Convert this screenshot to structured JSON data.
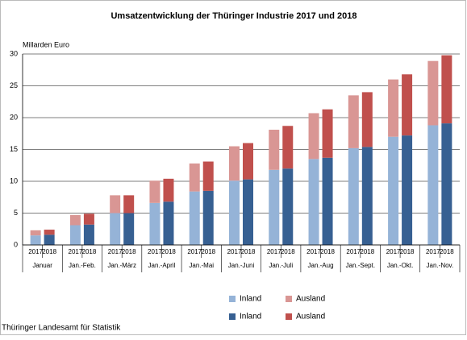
{
  "chart_data": {
    "type": "grouped_stacked_bar",
    "title": "Umsatzentwicklung der Thüringer Industrie 2017 und 2018",
    "y_label": "Millarden Euro",
    "source": "Thüringer Landesamt für Statistik",
    "categories": [
      "Januar",
      "Jan.-Feb.",
      "Jan.-März",
      "Jan.-April",
      "Jan.-Mai",
      "Jan.-Juni",
      "Jan.-Juli",
      "Jan.-Aug",
      "Jan.-Sept.",
      "Jan.-Okt.",
      "Jan.-Nov."
    ],
    "years": [
      "2017",
      "2018"
    ],
    "series": [
      {
        "name": "Inland",
        "color": "#95b3d7",
        "stack": 0,
        "values": [
          1.5,
          3.1,
          5.0,
          6.6,
          8.4,
          10.1,
          11.8,
          13.5,
          15.2,
          17.0,
          18.8
        ]
      },
      {
        "name": "Ausland",
        "color": "#d99694",
        "stack": 0,
        "values": [
          0.8,
          1.6,
          2.8,
          3.5,
          4.4,
          5.4,
          6.3,
          7.2,
          8.3,
          9.0,
          10.1
        ]
      },
      {
        "name": "Inland",
        "color": "#376092",
        "stack": 1,
        "values": [
          1.6,
          3.2,
          5.0,
          6.8,
          8.5,
          10.3,
          12.0,
          13.7,
          15.4,
          17.2,
          19.1
        ]
      },
      {
        "name": "Ausland",
        "color": "#c0504d",
        "stack": 1,
        "values": [
          0.8,
          1.7,
          2.8,
          3.6,
          4.6,
          5.7,
          6.7,
          7.6,
          8.6,
          9.6,
          10.7
        ]
      }
    ],
    "ylim": [
      0,
      30
    ],
    "yticks": [
      0,
      5,
      10,
      15,
      20,
      25,
      30
    ],
    "grid": true
  }
}
